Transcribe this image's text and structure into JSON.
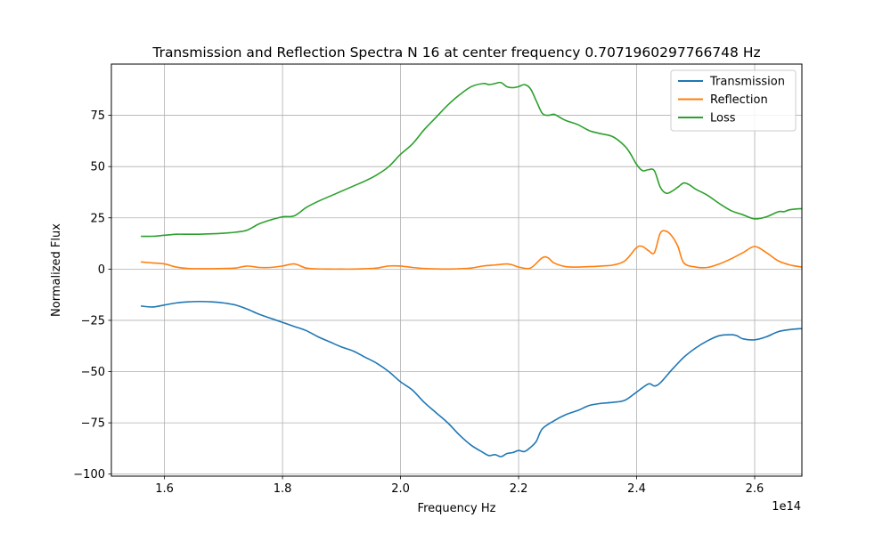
{
  "chart_data": {
    "type": "line",
    "title": "Transmission and Reflection Spectra N 16 at center frequency 0.7071960297766748 Hz",
    "xlabel": "Frequency Hz",
    "ylabel": "Normalized Flux",
    "x_offset_label": "1e14",
    "x_scale": 100000000000000.0,
    "xlim": [
      1.51,
      2.68
    ],
    "ylim": [
      -101,
      100
    ],
    "xticks": [
      1.6,
      1.8,
      2.0,
      2.2,
      2.4,
      2.6
    ],
    "xtick_labels": [
      "1.6",
      "1.8",
      "2.0",
      "2.2",
      "2.4",
      "2.6"
    ],
    "yticks": [
      -100,
      -75,
      -50,
      -25,
      0,
      25,
      50,
      75
    ],
    "ytick_labels": [
      "−100",
      "−75",
      "−50",
      "−25",
      "0",
      "25",
      "50",
      "75"
    ],
    "grid": true,
    "legend_position": "upper right",
    "series": [
      {
        "name": "Transmission",
        "color": "#1f77b4",
        "points": [
          [
            1.56,
            -18
          ],
          [
            1.58,
            -18.5
          ],
          [
            1.6,
            -17.5
          ],
          [
            1.62,
            -16.5
          ],
          [
            1.64,
            -16
          ],
          [
            1.66,
            -15.8
          ],
          [
            1.68,
            -16
          ],
          [
            1.7,
            -16.5
          ],
          [
            1.72,
            -17.5
          ],
          [
            1.74,
            -19.5
          ],
          [
            1.76,
            -22
          ],
          [
            1.78,
            -24
          ],
          [
            1.8,
            -26
          ],
          [
            1.82,
            -28
          ],
          [
            1.84,
            -30
          ],
          [
            1.86,
            -33
          ],
          [
            1.88,
            -35.5
          ],
          [
            1.9,
            -38
          ],
          [
            1.92,
            -40
          ],
          [
            1.94,
            -43
          ],
          [
            1.96,
            -46
          ],
          [
            1.98,
            -50
          ],
          [
            2.0,
            -55
          ],
          [
            2.02,
            -59
          ],
          [
            2.04,
            -65
          ],
          [
            2.06,
            -70
          ],
          [
            2.08,
            -75
          ],
          [
            2.1,
            -81
          ],
          [
            2.12,
            -86
          ],
          [
            2.14,
            -89.5
          ],
          [
            2.15,
            -91
          ],
          [
            2.16,
            -90.5
          ],
          [
            2.17,
            -91.5
          ],
          [
            2.18,
            -90
          ],
          [
            2.19,
            -89.5
          ],
          [
            2.2,
            -88.5
          ],
          [
            2.21,
            -89
          ],
          [
            2.22,
            -87
          ],
          [
            2.23,
            -84
          ],
          [
            2.24,
            -78
          ],
          [
            2.26,
            -74
          ],
          [
            2.28,
            -71
          ],
          [
            2.3,
            -69
          ],
          [
            2.32,
            -66.5
          ],
          [
            2.34,
            -65.5
          ],
          [
            2.36,
            -65
          ],
          [
            2.38,
            -64
          ],
          [
            2.4,
            -60
          ],
          [
            2.42,
            -56
          ],
          [
            2.43,
            -57
          ],
          [
            2.44,
            -55.5
          ],
          [
            2.46,
            -49
          ],
          [
            2.48,
            -43
          ],
          [
            2.5,
            -38.5
          ],
          [
            2.52,
            -35
          ],
          [
            2.54,
            -32.5
          ],
          [
            2.56,
            -32
          ],
          [
            2.57,
            -32.5
          ],
          [
            2.58,
            -34
          ],
          [
            2.6,
            -34.5
          ],
          [
            2.62,
            -33
          ],
          [
            2.64,
            -30.5
          ],
          [
            2.66,
            -29.5
          ],
          [
            2.68,
            -29
          ]
        ]
      },
      {
        "name": "Reflection",
        "color": "#ff7f0e",
        "points": [
          [
            1.56,
            3.5
          ],
          [
            1.58,
            3
          ],
          [
            1.6,
            2.5
          ],
          [
            1.62,
            1
          ],
          [
            1.64,
            0.3
          ],
          [
            1.66,
            0.2
          ],
          [
            1.68,
            0.2
          ],
          [
            1.7,
            0.3
          ],
          [
            1.72,
            0.5
          ],
          [
            1.74,
            1.5
          ],
          [
            1.76,
            0.8
          ],
          [
            1.78,
            0.8
          ],
          [
            1.8,
            1.5
          ],
          [
            1.82,
            2.5
          ],
          [
            1.84,
            0.5
          ],
          [
            1.86,
            0.1
          ],
          [
            1.88,
            0
          ],
          [
            1.9,
            0
          ],
          [
            1.92,
            0
          ],
          [
            1.94,
            0.2
          ],
          [
            1.96,
            0.5
          ],
          [
            1.98,
            1.5
          ],
          [
            2.0,
            1.5
          ],
          [
            2.02,
            0.8
          ],
          [
            2.04,
            0.3
          ],
          [
            2.06,
            0.1
          ],
          [
            2.08,
            0
          ],
          [
            2.1,
            0.2
          ],
          [
            2.12,
            0.5
          ],
          [
            2.14,
            1.5
          ],
          [
            2.16,
            2
          ],
          [
            2.18,
            2.5
          ],
          [
            2.19,
            2
          ],
          [
            2.2,
            1
          ],
          [
            2.22,
            0.5
          ],
          [
            2.24,
            5.5
          ],
          [
            2.25,
            5.5
          ],
          [
            2.26,
            3
          ],
          [
            2.28,
            1.2
          ],
          [
            2.3,
            1
          ],
          [
            2.32,
            1.2
          ],
          [
            2.34,
            1.5
          ],
          [
            2.36,
            2
          ],
          [
            2.38,
            4
          ],
          [
            2.4,
            10.5
          ],
          [
            2.41,
            11
          ],
          [
            2.42,
            9
          ],
          [
            2.43,
            8
          ],
          [
            2.44,
            17.5
          ],
          [
            2.45,
            18.5
          ],
          [
            2.46,
            16
          ],
          [
            2.47,
            11
          ],
          [
            2.48,
            3
          ],
          [
            2.5,
            1
          ],
          [
            2.52,
            0.8
          ],
          [
            2.54,
            2.5
          ],
          [
            2.56,
            5
          ],
          [
            2.58,
            8
          ],
          [
            2.6,
            11
          ],
          [
            2.62,
            8
          ],
          [
            2.64,
            4
          ],
          [
            2.66,
            2
          ],
          [
            2.68,
            1
          ]
        ]
      },
      {
        "name": "Loss",
        "color": "#2ca02c",
        "points": [
          [
            1.56,
            16
          ],
          [
            1.58,
            16
          ],
          [
            1.6,
            16.5
          ],
          [
            1.62,
            17
          ],
          [
            1.64,
            17
          ],
          [
            1.66,
            17
          ],
          [
            1.68,
            17.2
          ],
          [
            1.7,
            17.5
          ],
          [
            1.72,
            18
          ],
          [
            1.74,
            19
          ],
          [
            1.76,
            22
          ],
          [
            1.78,
            24
          ],
          [
            1.8,
            25.5
          ],
          [
            1.82,
            26
          ],
          [
            1.84,
            30
          ],
          [
            1.86,
            33
          ],
          [
            1.88,
            35.5
          ],
          [
            1.9,
            38
          ],
          [
            1.92,
            40.5
          ],
          [
            1.94,
            43
          ],
          [
            1.96,
            46
          ],
          [
            1.98,
            50
          ],
          [
            2.0,
            56
          ],
          [
            2.02,
            61
          ],
          [
            2.04,
            68
          ],
          [
            2.06,
            74
          ],
          [
            2.08,
            80
          ],
          [
            2.1,
            85
          ],
          [
            2.12,
            89
          ],
          [
            2.14,
            90.5
          ],
          [
            2.15,
            90
          ],
          [
            2.16,
            90.5
          ],
          [
            2.17,
            91
          ],
          [
            2.18,
            89
          ],
          [
            2.19,
            88.5
          ],
          [
            2.2,
            89
          ],
          [
            2.21,
            90
          ],
          [
            2.22,
            88
          ],
          [
            2.23,
            82
          ],
          [
            2.24,
            76
          ],
          [
            2.25,
            75
          ],
          [
            2.26,
            75.5
          ],
          [
            2.27,
            74
          ],
          [
            2.28,
            72.5
          ],
          [
            2.3,
            70.5
          ],
          [
            2.32,
            67.5
          ],
          [
            2.34,
            66
          ],
          [
            2.36,
            64.5
          ],
          [
            2.38,
            60
          ],
          [
            2.39,
            56
          ],
          [
            2.4,
            51
          ],
          [
            2.41,
            48
          ],
          [
            2.42,
            48.5
          ],
          [
            2.43,
            48
          ],
          [
            2.44,
            40
          ],
          [
            2.45,
            37
          ],
          [
            2.46,
            38
          ],
          [
            2.47,
            40
          ],
          [
            2.48,
            42
          ],
          [
            2.49,
            41
          ],
          [
            2.5,
            39
          ],
          [
            2.52,
            36
          ],
          [
            2.54,
            32
          ],
          [
            2.56,
            28.5
          ],
          [
            2.58,
            26.5
          ],
          [
            2.6,
            24.5
          ],
          [
            2.62,
            25.5
          ],
          [
            2.64,
            28
          ],
          [
            2.65,
            28
          ],
          [
            2.66,
            29
          ],
          [
            2.68,
            29.5
          ]
        ]
      }
    ]
  }
}
